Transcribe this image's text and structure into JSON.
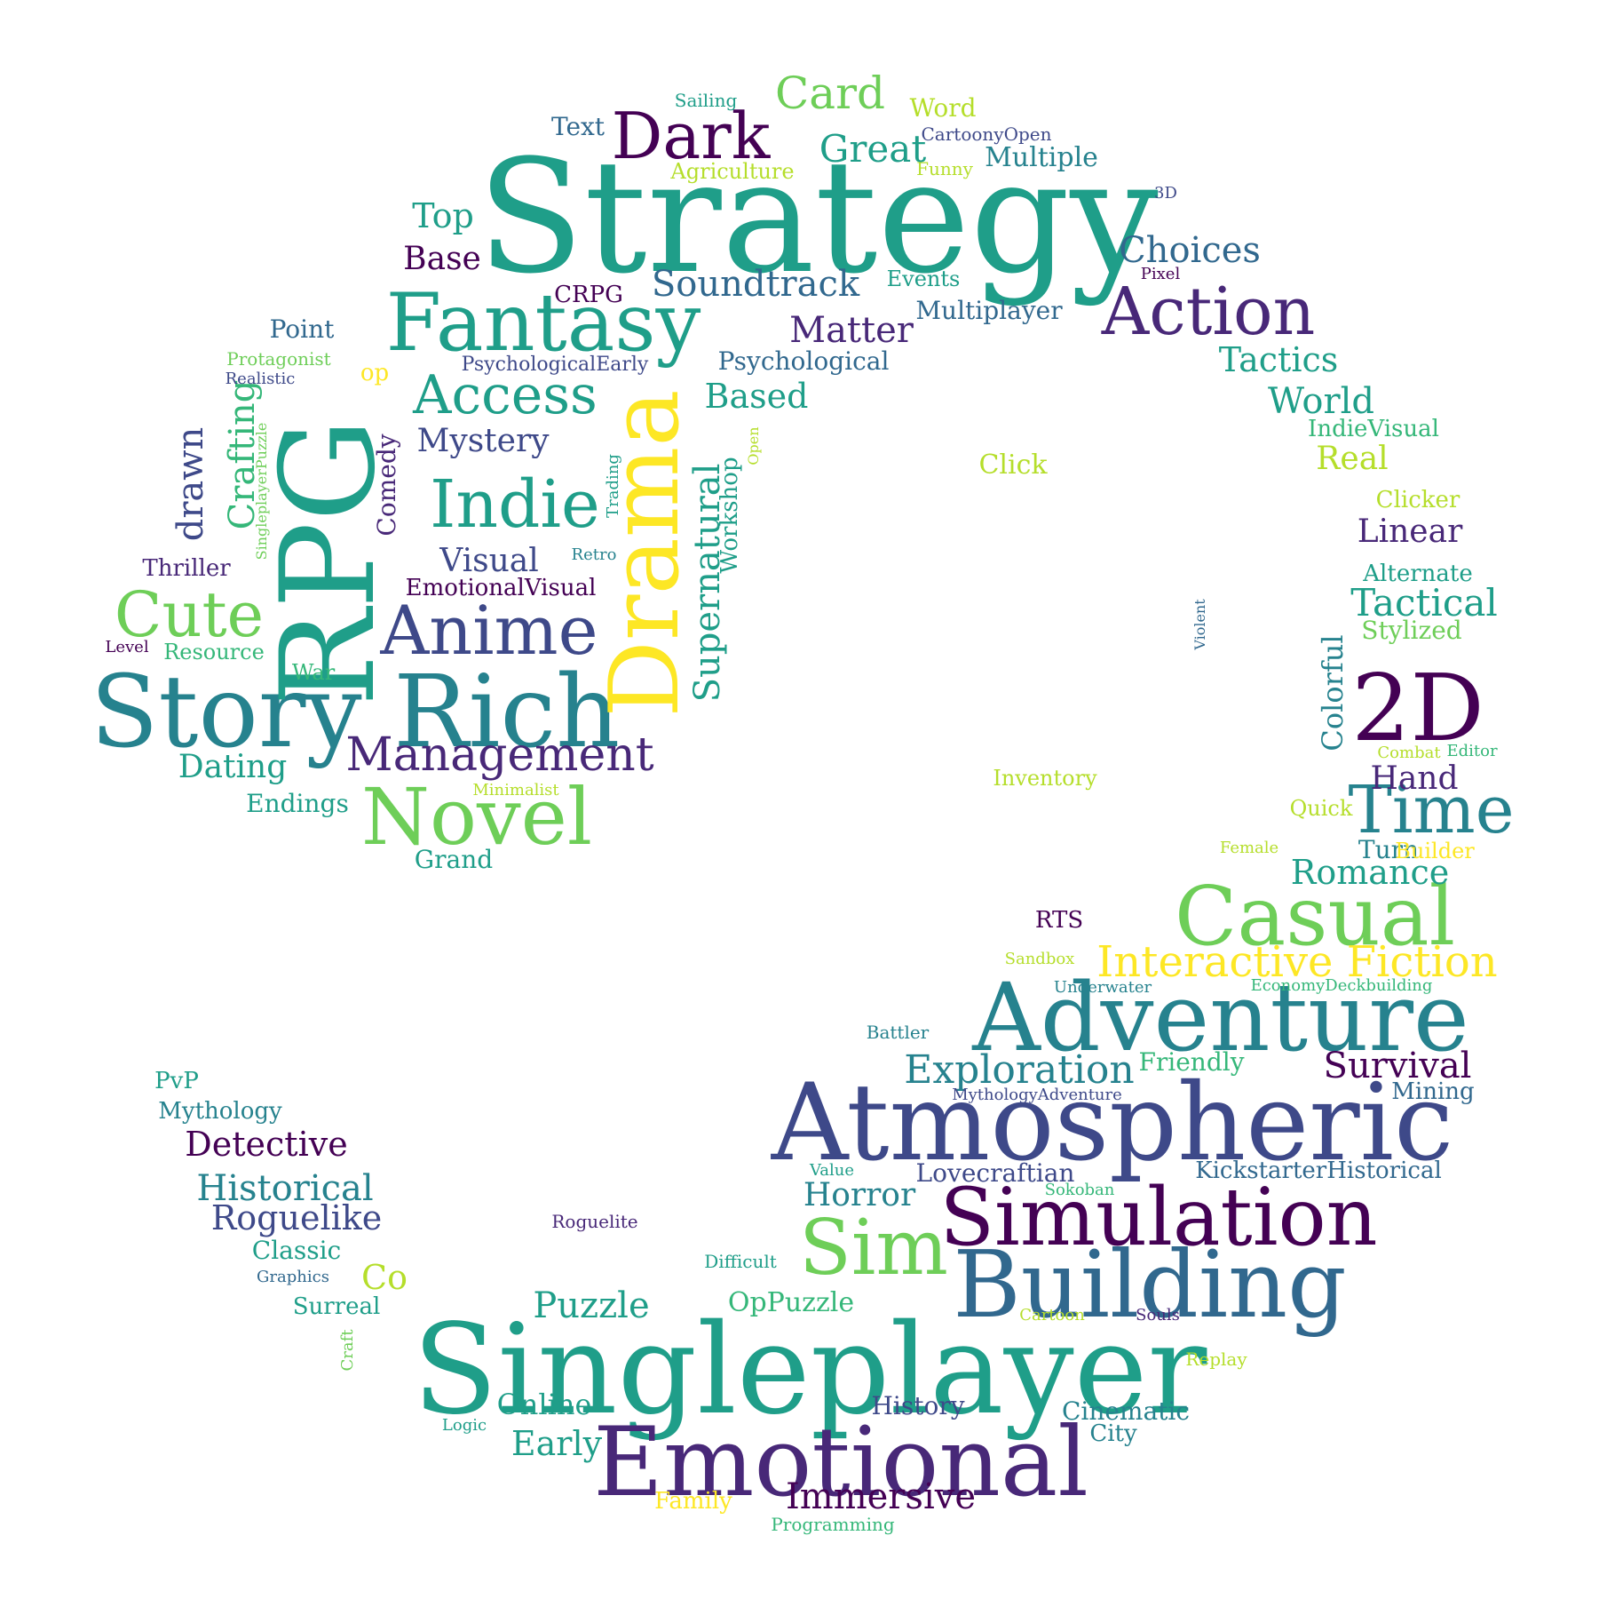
{
  "palette": {
    "v1": "#440154",
    "v2": "#482878",
    "v3": "#3e4989",
    "v4": "#31688e",
    "v5": "#26828e",
    "v6": "#1f9e89",
    "v7": "#35b779",
    "v8": "#6ece58",
    "v9": "#b5de2b",
    "v10": "#fde725"
  },
  "words": [
    {
      "text": "Strategy"
    },
    {
      "text": "Singleplayer"
    },
    {
      "text": "Story Rich"
    },
    {
      "text": "Atmospheric"
    },
    {
      "text": "Adventure"
    },
    {
      "text": "RPG"
    },
    {
      "text": "Fantasy"
    },
    {
      "text": "Emotional"
    },
    {
      "text": "Simulation"
    },
    {
      "text": "Drama"
    },
    {
      "text": "2D"
    },
    {
      "text": "Building"
    },
    {
      "text": "Casual"
    },
    {
      "text": "Novel"
    },
    {
      "text": "Anime"
    },
    {
      "text": "Indie"
    },
    {
      "text": "Sim"
    },
    {
      "text": "Action"
    },
    {
      "text": "Access"
    },
    {
      "text": "Cute"
    },
    {
      "text": "Dark"
    },
    {
      "text": "Time"
    },
    {
      "text": "Interactive Fiction"
    },
    {
      "text": "Management"
    },
    {
      "text": "Exploration"
    },
    {
      "text": "Card"
    },
    {
      "text": "Soundtrack"
    },
    {
      "text": "Supernatural"
    },
    {
      "text": "Great"
    },
    {
      "text": "Matter"
    },
    {
      "text": "Immersive"
    },
    {
      "text": "Survival"
    },
    {
      "text": "Romance"
    },
    {
      "text": "Puzzle"
    },
    {
      "text": "Choices"
    },
    {
      "text": "Tactics"
    },
    {
      "text": "Tactical"
    },
    {
      "text": "World"
    },
    {
      "text": "Detective"
    },
    {
      "text": "Historical"
    },
    {
      "text": "Roguelike"
    },
    {
      "text": "Horror"
    },
    {
      "text": "Based"
    },
    {
      "text": "Visual"
    },
    {
      "text": "Mystery"
    },
    {
      "text": "Base"
    },
    {
      "text": "Top"
    },
    {
      "text": "Early"
    },
    {
      "text": "Online"
    },
    {
      "text": "Hand"
    },
    {
      "text": "Real"
    },
    {
      "text": "Linear"
    },
    {
      "text": "Dating"
    },
    {
      "text": "Co"
    },
    {
      "text": "drawn"
    },
    {
      "text": "Crafting"
    },
    {
      "text": "Colorful"
    },
    {
      "text": "Cinematic"
    },
    {
      "text": "OpPuzzle"
    },
    {
      "text": "Multiple"
    },
    {
      "text": "Multiplayer"
    },
    {
      "text": "Psychological"
    },
    {
      "text": "Lovecraftian"
    },
    {
      "text": "KickstarterHistorical"
    },
    {
      "text": "History"
    },
    {
      "text": "Endings"
    },
    {
      "text": "Grand"
    },
    {
      "text": "Classic"
    },
    {
      "text": "Surreal"
    },
    {
      "text": "Friendly"
    },
    {
      "text": "Workshop"
    },
    {
      "text": "Comedy"
    },
    {
      "text": "EmotionalVisual"
    },
    {
      "text": "PsychologicalEarly"
    },
    {
      "text": "Thriller"
    },
    {
      "text": "Mythology"
    },
    {
      "text": "Point"
    },
    {
      "text": "Turn"
    },
    {
      "text": "Text"
    },
    {
      "text": "Word"
    },
    {
      "text": "Stylized"
    },
    {
      "text": "Alternate"
    },
    {
      "text": "Clicker"
    },
    {
      "text": "IndieVisual"
    },
    {
      "text": "Click"
    },
    {
      "text": "Inventory"
    },
    {
      "text": "Events"
    },
    {
      "text": "CRPG"
    },
    {
      "text": "Agriculture"
    },
    {
      "text": "Resource"
    },
    {
      "text": "War"
    },
    {
      "text": "Mining"
    },
    {
      "text": "Family"
    },
    {
      "text": "Quick"
    },
    {
      "text": "Builder"
    },
    {
      "text": "PvP"
    },
    {
      "text": "RTS"
    },
    {
      "text": "City"
    },
    {
      "text": "op"
    },
    {
      "text": "Sailing"
    },
    {
      "text": "CartoonyOpen"
    },
    {
      "text": "Funny"
    },
    {
      "text": "3D"
    },
    {
      "text": "Pixel"
    },
    {
      "text": "Protagonist"
    },
    {
      "text": "Realistic"
    },
    {
      "text": "SingleplayerPuzzle"
    },
    {
      "text": "Trading"
    },
    {
      "text": "Open"
    },
    {
      "text": "Retro"
    },
    {
      "text": "Level"
    },
    {
      "text": "Minimalist"
    },
    {
      "text": "Violent"
    },
    {
      "text": "Combat"
    },
    {
      "text": "Editor"
    },
    {
      "text": "Female"
    },
    {
      "text": "Sandbox"
    },
    {
      "text": "Underwater"
    },
    {
      "text": "EconomyDeckbuilding"
    },
    {
      "text": "Battler"
    },
    {
      "text": "MythologyAdventure"
    },
    {
      "text": "Value"
    },
    {
      "text": "Sokoban"
    },
    {
      "text": "Roguelite"
    },
    {
      "text": "Difficult"
    },
    {
      "text": "Graphics"
    },
    {
      "text": "Cartoon"
    },
    {
      "text": "Souls"
    },
    {
      "text": "Craft"
    },
    {
      "text": "Replay"
    },
    {
      "text": "Logic"
    },
    {
      "text": "Programming"
    }
  ]
}
